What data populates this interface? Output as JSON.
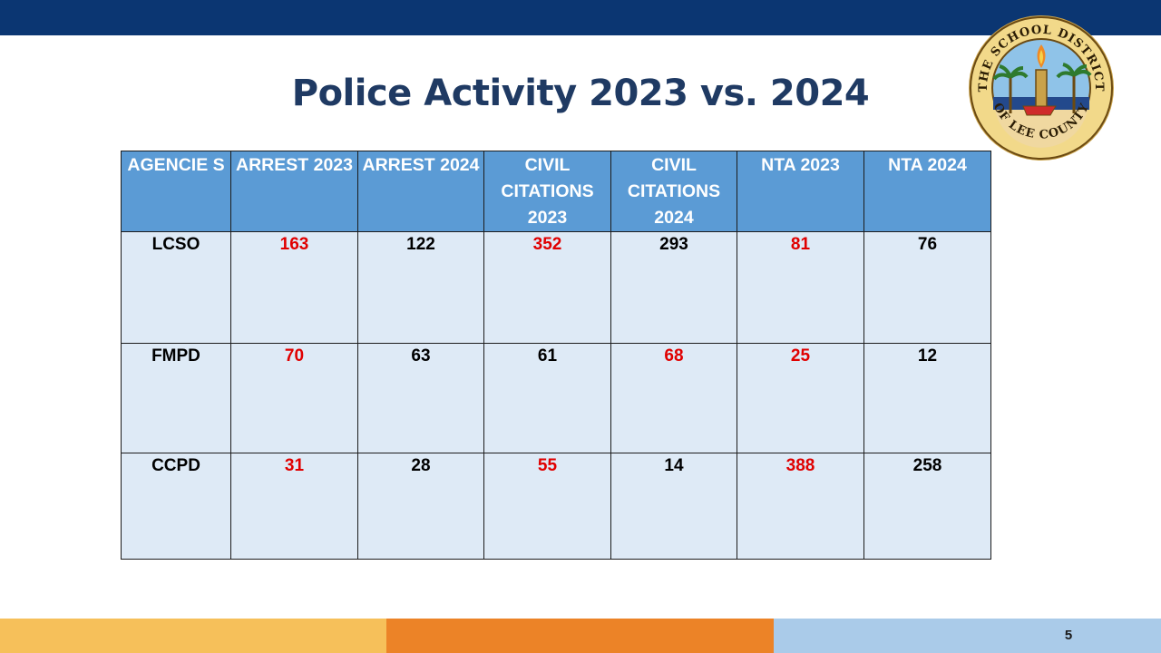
{
  "slide": {
    "title": "Police Activity 2023 vs. 2024",
    "page_number": "5"
  },
  "seal": {
    "text_top": "THE SCHOOL DISTRICT",
    "text_bottom": "OF LEE COUNTY",
    "icon": "school-district-seal-icon"
  },
  "table": {
    "headers": [
      "AGENCIE S",
      "ARREST 2023",
      "ARREST 2024",
      "CIVIL CITATIONS 2023",
      "CIVIL CITATIONS 2024",
      "NTA 2023",
      "NTA 2024"
    ],
    "rows": [
      {
        "agency": "LCSO",
        "values": [
          "163",
          "122",
          "352",
          "293",
          "81",
          "76"
        ],
        "highlight": [
          true,
          false,
          true,
          false,
          true,
          false
        ]
      },
      {
        "agency": "FMPD",
        "values": [
          "70",
          "63",
          "61",
          "68",
          "25",
          "12"
        ],
        "highlight": [
          true,
          false,
          false,
          true,
          true,
          false
        ]
      },
      {
        "agency": "CCPD",
        "values": [
          "31",
          "28",
          "55",
          "14",
          "388",
          "258"
        ],
        "highlight": [
          true,
          false,
          true,
          false,
          true,
          false
        ]
      }
    ]
  },
  "colors": {
    "header_bg": "#5b9bd5",
    "cell_bg": "#deeaf6",
    "highlight_text": "#e00000",
    "top_bar": "#0b3672",
    "footer": [
      "#f6c05a",
      "#ec8327",
      "#aacbe9"
    ]
  }
}
